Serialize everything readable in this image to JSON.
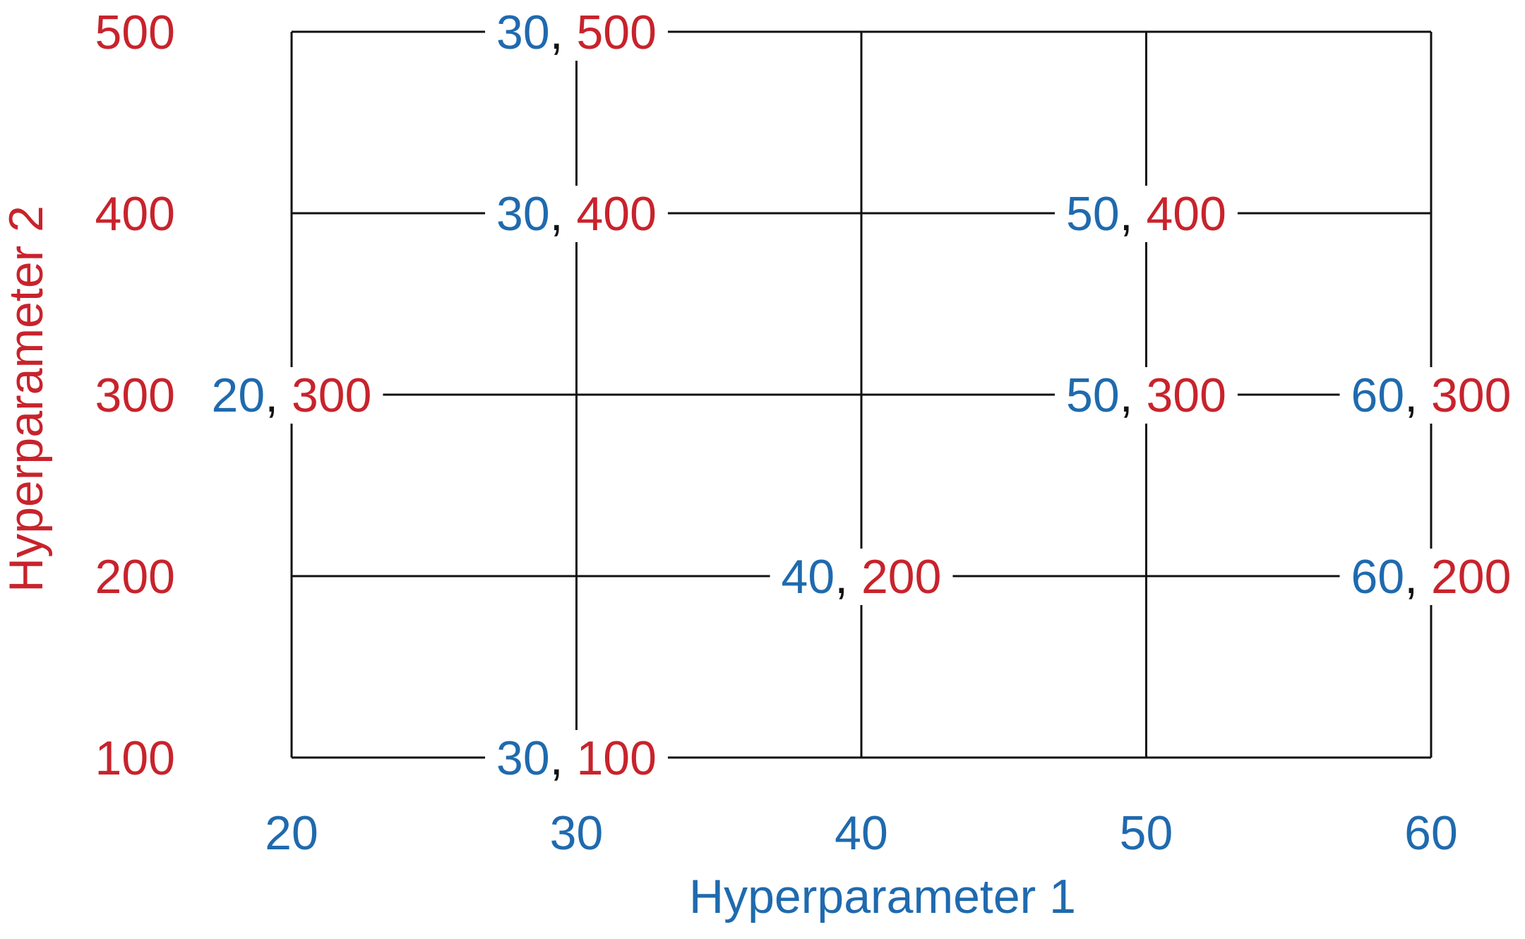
{
  "figure": {
    "colors": {
      "hyperparameter_1": "#1f6aae",
      "hyperparameter_2": "#c8232c",
      "grid_line": "#111111",
      "background": "#ffffff"
    },
    "x_axis": {
      "label": "Hyperparameter 1",
      "ticks": [
        20,
        30,
        40,
        50,
        60
      ]
    },
    "y_axis": {
      "label": "Hyperparameter 2",
      "ticks": [
        100,
        200,
        300,
        400,
        500
      ]
    },
    "separator": ", ",
    "sampled_points": [
      {
        "h1": 30,
        "h2": 500
      },
      {
        "h1": 30,
        "h2": 400
      },
      {
        "h1": 50,
        "h2": 400
      },
      {
        "h1": 20,
        "h2": 300
      },
      {
        "h1": 50,
        "h2": 300
      },
      {
        "h1": 60,
        "h2": 300
      },
      {
        "h1": 40,
        "h2": 200
      },
      {
        "h1": 60,
        "h2": 200
      },
      {
        "h1": 30,
        "h2": 100
      }
    ]
  }
}
